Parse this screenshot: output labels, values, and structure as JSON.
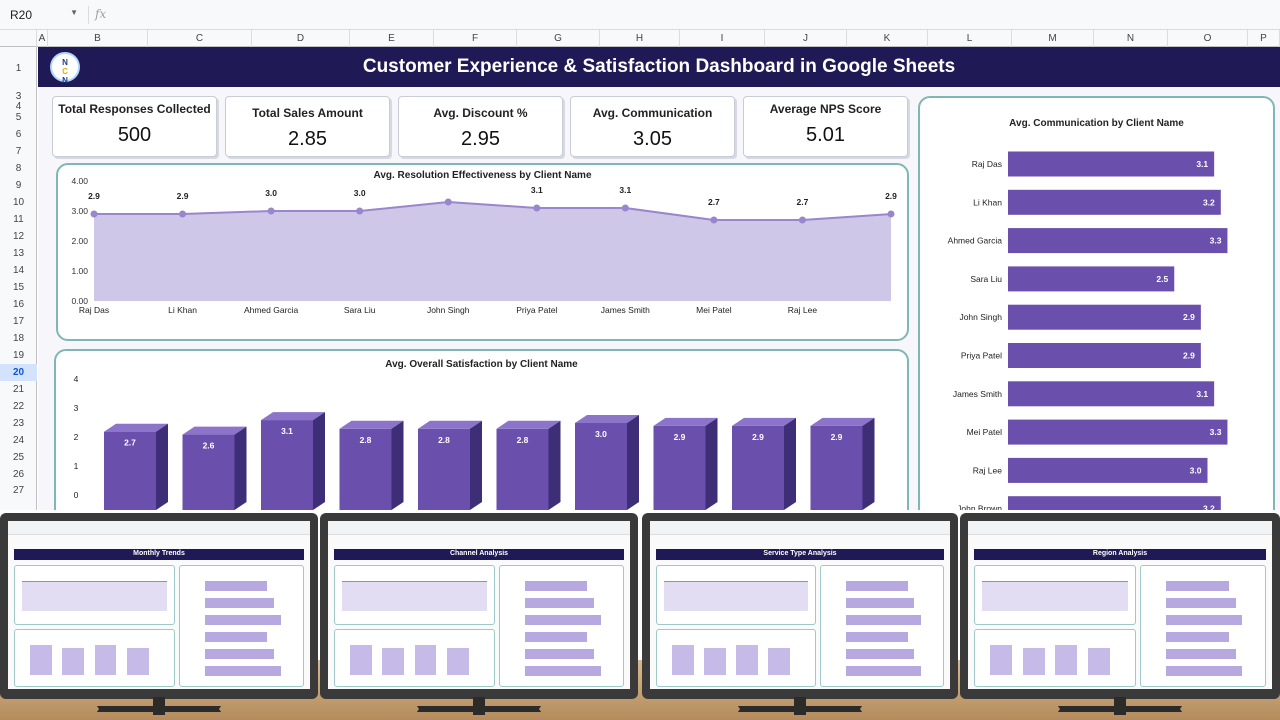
{
  "formula_bar": {
    "cell_ref": "R20",
    "fx_label": "fx"
  },
  "columns": [
    "A",
    "B",
    "C",
    "D",
    "E",
    "F",
    "G",
    "H",
    "I",
    "J",
    "K",
    "L",
    "M",
    "N",
    "O",
    "P"
  ],
  "rows": [
    {
      "label": "1"
    },
    {
      "label": "3"
    },
    {
      "label": "4"
    },
    {
      "label": "5"
    },
    {
      "label": "6"
    },
    {
      "label": "7"
    },
    {
      "label": "8"
    },
    {
      "label": "9"
    },
    {
      "label": "10"
    },
    {
      "label": "11"
    },
    {
      "label": "12"
    },
    {
      "label": "13"
    },
    {
      "label": "14"
    },
    {
      "label": "15"
    },
    {
      "label": "16"
    },
    {
      "label": "17"
    },
    {
      "label": "18"
    },
    {
      "label": "19"
    },
    {
      "label": "20",
      "selected": true
    },
    {
      "label": "21"
    },
    {
      "label": "22"
    },
    {
      "label": "23"
    },
    {
      "label": "24"
    },
    {
      "label": "25"
    },
    {
      "label": "26"
    },
    {
      "label": "27"
    }
  ],
  "dashboard": {
    "title": "Customer Experience & Satisfaction Dashboard in Google Sheets",
    "logo_text": [
      "N",
      "C",
      "N"
    ]
  },
  "kpis": [
    {
      "label": "Total Responses Collected",
      "value": "500"
    },
    {
      "label": "Total Sales Amount",
      "value": "2.85"
    },
    {
      "label": "Avg. Discount %",
      "value": "2.95"
    },
    {
      "label": "Avg. Communication",
      "value": "3.05"
    },
    {
      "label": "Average NPS Score",
      "value": "5.01"
    }
  ],
  "colors": {
    "banner": "#1f1a55",
    "series_dark": "#6a4fad",
    "series_light": "#cfc7e8",
    "panel_border": "#7fb7b6"
  },
  "chart_data": [
    {
      "type": "area",
      "title": "Avg. Resolution Effectiveness by Client Name",
      "categories": [
        "Raj Das",
        "Li Khan",
        "Ahmed Garcia",
        "Sara Liu",
        "John Singh",
        "Priya Patel",
        "James Smith",
        "Mei Patel",
        "Raj Lee",
        ""
      ],
      "values": [
        2.9,
        2.9,
        3.0,
        3.0,
        3.3,
        3.1,
        3.1,
        2.7,
        2.7,
        2.9
      ],
      "data_labels": [
        "2.9",
        "2.9",
        "3.0",
        "3.0",
        "",
        "3.1",
        "3.1",
        "2.7",
        "2.7",
        "2.9"
      ],
      "yticks": [
        "0.00",
        "1.00",
        "2.00",
        "3.00",
        "4.00"
      ],
      "ylim": [
        0,
        4
      ]
    },
    {
      "type": "bar",
      "title": "Avg. Overall Satisfaction by Client Name",
      "values": [
        2.7,
        2.6,
        3.1,
        2.8,
        2.8,
        2.8,
        3.0,
        2.9,
        2.9,
        2.9
      ],
      "data_labels": [
        "2.7",
        "2.6",
        "3.1",
        "2.8",
        "2.8",
        "2.8",
        "3.0",
        "2.9",
        "2.9",
        "2.9"
      ],
      "yticks": [
        "0",
        "1",
        "2",
        "3",
        "4"
      ],
      "ylim": [
        0,
        4
      ]
    },
    {
      "type": "bar",
      "orientation": "horizontal",
      "title": "Avg. Communication by Client Name",
      "categories": [
        "Raj Das",
        "Li Khan",
        "Ahmed Garcia",
        "Sara Liu",
        "John Singh",
        "Priya Patel",
        "James Smith",
        "Mei Patel",
        "Raj Lee",
        "John Brown"
      ],
      "values": [
        3.1,
        3.2,
        3.3,
        2.5,
        2.9,
        2.9,
        3.1,
        3.3,
        3.0,
        3.2
      ],
      "data_labels": [
        "3.1",
        "3.2",
        "3.3",
        "2.5",
        "2.9",
        "2.9",
        "3.1",
        "3.3",
        "3.0",
        "3.2"
      ],
      "xlim": [
        0,
        4
      ]
    }
  ],
  "monitors": [
    {
      "title": "Monthly Trends"
    },
    {
      "title": "Channel Analysis"
    },
    {
      "title": "Service Type  Analysis"
    },
    {
      "title": "Region Analysis"
    }
  ]
}
